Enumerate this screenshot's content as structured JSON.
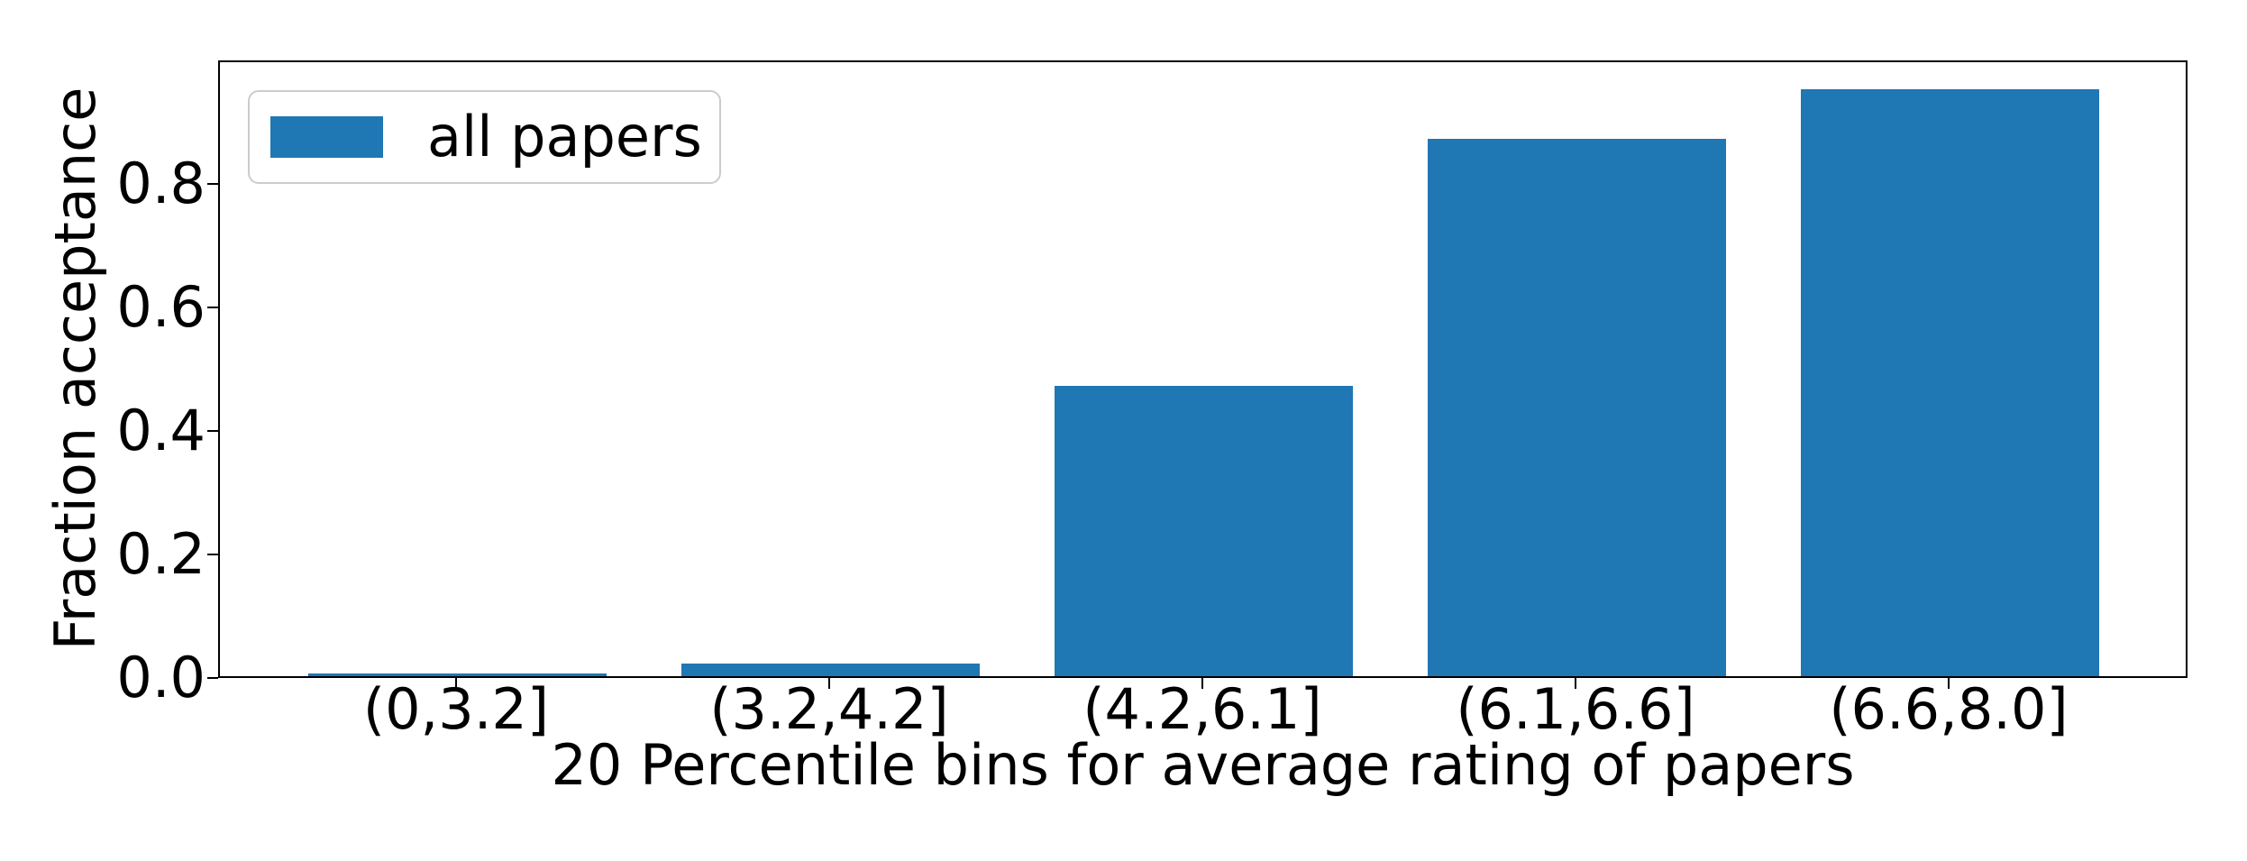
{
  "chart_data": {
    "type": "bar",
    "title": "",
    "xlabel": "20 Percentile bins for average rating of papers",
    "ylabel": "Fraction acceptance",
    "categories": [
      "(0,3.2]",
      "(3.2,4.2]",
      "(4.2,6.1]",
      "(6.1,6.6]",
      "(6.6,8.0]"
    ],
    "values": [
      0.005,
      0.02,
      0.47,
      0.87,
      0.95
    ],
    "yticks": [
      0.0,
      0.2,
      0.4,
      0.6,
      0.8
    ],
    "ytick_labels": [
      "0.0",
      "0.2",
      "0.4",
      "0.6",
      "0.8"
    ],
    "ylim": [
      0.0,
      1.0
    ],
    "legend": {
      "entries": [
        "all papers"
      ],
      "position": "upper left"
    },
    "bar_color": "#1f77b4",
    "axis_color": "#000000",
    "grid": false
  }
}
